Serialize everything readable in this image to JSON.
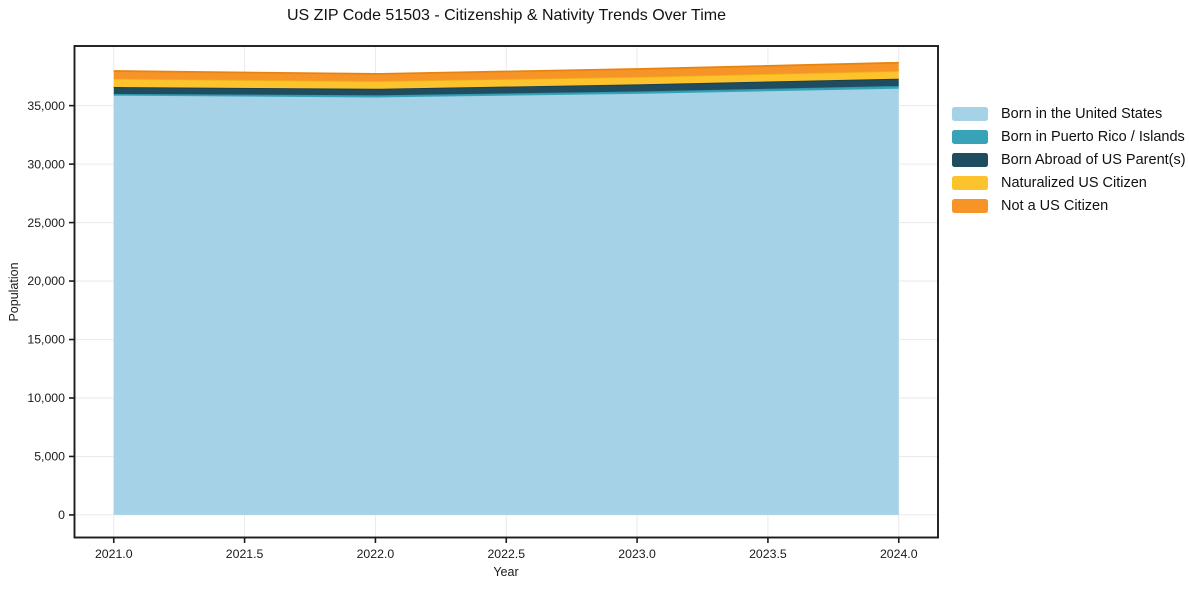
{
  "chart_data": {
    "type": "area",
    "stacked": true,
    "title": "US ZIP Code 51503 - Citizenship & Nativity Trends Over Time",
    "xlabel": "Year",
    "ylabel": "Population",
    "x": [
      2021,
      2022,
      2023,
      2024
    ],
    "series": [
      {
        "name": "Born in the United States",
        "color": "#a6d2e8",
        "edge_color": "#a6d2e8",
        "values": [
          35850,
          35700,
          36000,
          36450
        ]
      },
      {
        "name": "Born in Puerto Rico / Islands",
        "color": "#38a3b8",
        "edge_color": "#2f98ad",
        "values": [
          150,
          180,
          210,
          230
        ]
      },
      {
        "name": "Born Abroad of US Parent(s)",
        "color": "#1f4c5e",
        "edge_color": "#193f4e",
        "values": [
          590,
          560,
          610,
          620
        ]
      },
      {
        "name": "Naturalized US Citizen",
        "color": "#fcc32d",
        "edge_color": "#f0ad15",
        "values": [
          710,
          660,
          640,
          670
        ]
      },
      {
        "name": "Not a US Citizen",
        "color": "#f79428",
        "edge_color": "#e8830d",
        "values": [
          660,
          610,
          670,
          700
        ]
      }
    ],
    "xticks": [
      2021.0,
      2021.5,
      2022.0,
      2022.5,
      2023.0,
      2023.5,
      2024.0
    ],
    "xtick_labels": [
      "2021.0",
      "2021.5",
      "2022.0",
      "2022.5",
      "2023.0",
      "2023.5",
      "2024.0"
    ],
    "yticks": [
      0,
      5000,
      10000,
      15000,
      20000,
      25000,
      30000,
      35000
    ],
    "ytick_labels": [
      "0",
      "5,000",
      "10,000",
      "15,000",
      "20,000",
      "25,000",
      "30,000",
      "35,000"
    ],
    "xlim": [
      2020.85,
      2024.15
    ],
    "ylim": [
      -1930,
      40100
    ],
    "grid": true,
    "grid_color": "#eaeaea",
    "spine_color": "#1b1b1b",
    "tick_text_color": "#1a1a1a",
    "legend_position": "right"
  }
}
